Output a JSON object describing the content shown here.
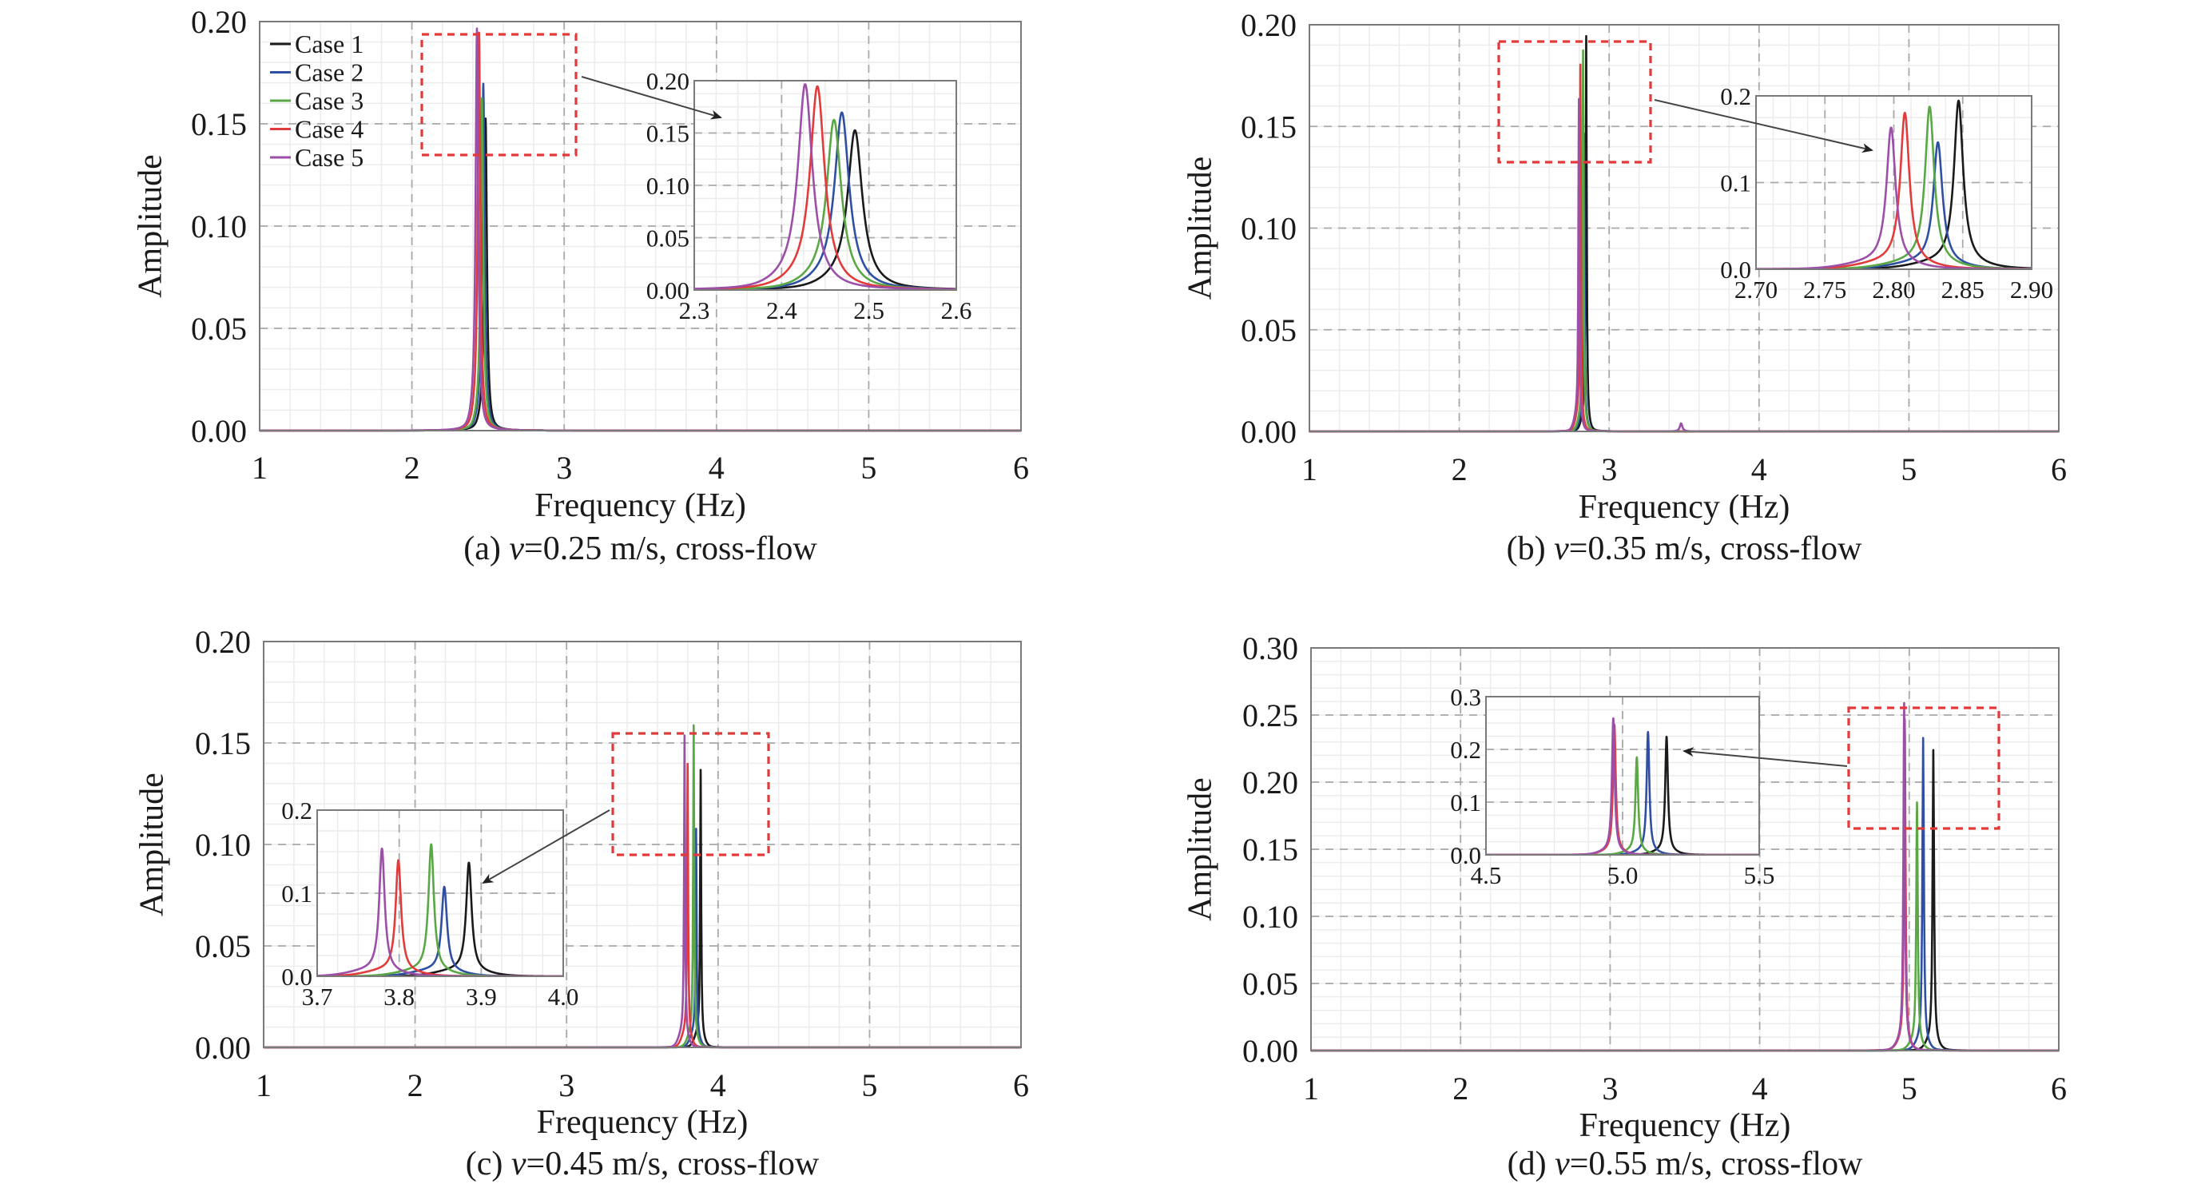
{
  "figure": {
    "legend": [
      {
        "label": "Case 1",
        "color": "#1a1a1a"
      },
      {
        "label": "Case 2",
        "color": "#2f4fa2"
      },
      {
        "label": "Case 3",
        "color": "#5aa845"
      },
      {
        "label": "Case 4",
        "color": "#e23b3b"
      },
      {
        "label": "Case 5",
        "color": "#9c4fa8"
      }
    ],
    "highlight_color": "#e03a3a"
  },
  "chart_data": [
    {
      "type": "line",
      "id": "a",
      "caption_prefix": "(a) ",
      "caption_var": "v",
      "caption_rest": "=0.25 m/s, cross-flow",
      "xlabel": "Frequency (Hz)",
      "ylabel": "Amplitude",
      "xlim": [
        1,
        6
      ],
      "ylim": [
        0,
        0.2
      ],
      "xticks": [
        "1",
        "2",
        "3",
        "4",
        "5",
        "6"
      ],
      "yticks": [
        "0.00",
        "0.05",
        "0.10",
        "0.15",
        "0.20"
      ],
      "grid": true,
      "legend_position": "top-left",
      "series": [
        {
          "name": "Case 1",
          "peak_frequency": 2.484,
          "peak_amplitude": 0.146
        },
        {
          "name": "Case 2",
          "peak_frequency": 2.469,
          "peak_amplitude": 0.163
        },
        {
          "name": "Case 3",
          "peak_frequency": 2.46,
          "peak_amplitude": 0.156
        },
        {
          "name": "Case 4",
          "peak_frequency": 2.441,
          "peak_amplitude": 0.188
        },
        {
          "name": "Case 5",
          "peak_frequency": 2.427,
          "peak_amplitude": 0.19
        }
      ],
      "inset": {
        "xlim": [
          2.3,
          2.6
        ],
        "ylim": [
          0,
          0.2
        ],
        "xticks": [
          "2.3",
          "2.4",
          "2.5",
          "2.6"
        ],
        "yticks": [
          "0.00",
          "0.05",
          "0.10",
          "0.15",
          "0.20"
        ]
      }
    },
    {
      "type": "line",
      "id": "b",
      "caption_prefix": "(b) ",
      "caption_var": "v",
      "caption_rest": "=0.35 m/s, cross-flow",
      "xlabel": "Frequency (Hz)",
      "ylabel": "Amplitude",
      "xlim": [
        1,
        6
      ],
      "ylim": [
        0,
        0.2
      ],
      "xticks": [
        "1",
        "2",
        "3",
        "4",
        "5",
        "6"
      ],
      "yticks": [
        "0.00",
        "0.05",
        "0.10",
        "0.15",
        "0.20"
      ],
      "grid": true,
      "series": [
        {
          "name": "Case 1",
          "peak_frequency": 2.847,
          "peak_amplitude": 0.188
        },
        {
          "name": "Case 2",
          "peak_frequency": 2.832,
          "peak_amplitude": 0.14
        },
        {
          "name": "Case 3",
          "peak_frequency": 2.826,
          "peak_amplitude": 0.181
        },
        {
          "name": "Case 4",
          "peak_frequency": 2.808,
          "peak_amplitude": 0.174
        },
        {
          "name": "Case 5",
          "peak_frequency": 2.798,
          "peak_amplitude": 0.157
        }
      ],
      "secondary_peak": {
        "name": "Case 5",
        "frequency": 3.48,
        "amplitude": 0.004
      },
      "inset": {
        "xlim": [
          2.7,
          2.9
        ],
        "ylim": [
          0,
          0.2
        ],
        "xticks": [
          "2.70",
          "2.75",
          "2.80",
          "2.85",
          "2.90"
        ],
        "yticks": [
          "0.0",
          "0.1",
          "0.2"
        ]
      }
    },
    {
      "type": "line",
      "id": "c",
      "caption_prefix": "(c) ",
      "caption_var": "v",
      "caption_rest": "=0.45 m/s, cross-flow",
      "xlabel": "Frequency (Hz)",
      "ylabel": "Amplitude",
      "xlim": [
        1,
        6
      ],
      "ylim": [
        0,
        0.2
      ],
      "xticks": [
        "1",
        "2",
        "3",
        "4",
        "5",
        "6"
      ],
      "yticks": [
        "0.00",
        "0.05",
        "0.10",
        "0.15",
        "0.20"
      ],
      "grid": true,
      "series": [
        {
          "name": "Case 1",
          "peak_frequency": 3.885,
          "peak_amplitude": 0.13
        },
        {
          "name": "Case 2",
          "peak_frequency": 3.855,
          "peak_amplitude": 0.101
        },
        {
          "name": "Case 3",
          "peak_frequency": 3.839,
          "peak_amplitude": 0.152
        },
        {
          "name": "Case 4",
          "peak_frequency": 3.799,
          "peak_amplitude": 0.133
        },
        {
          "name": "Case 5",
          "peak_frequency": 3.779,
          "peak_amplitude": 0.147
        }
      ],
      "inset": {
        "xlim": [
          3.7,
          4.0
        ],
        "ylim": [
          0,
          0.2
        ],
        "xticks": [
          "3.7",
          "3.8",
          "3.9",
          "4.0"
        ],
        "yticks": [
          "0.0",
          "0.1",
          "0.2"
        ]
      }
    },
    {
      "type": "line",
      "id": "d",
      "caption_prefix": "(d) ",
      "caption_var": "v",
      "caption_rest": "=0.55 m/s, cross-flow",
      "xlabel": "Frequency (Hz)",
      "ylabel": "Amplitude",
      "xlim": [
        1,
        6
      ],
      "ylim": [
        0,
        0.3
      ],
      "xticks": [
        "1",
        "2",
        "3",
        "4",
        "5",
        "6"
      ],
      "yticks": [
        "0.00",
        "0.05",
        "0.10",
        "0.15",
        "0.20",
        "0.25",
        "0.30"
      ],
      "grid": true,
      "series": [
        {
          "name": "Case 1",
          "peak_frequency": 5.161,
          "peak_amplitude": 0.217
        },
        {
          "name": "Case 2",
          "peak_frequency": 5.093,
          "peak_amplitude": 0.226
        },
        {
          "name": "Case 3",
          "peak_frequency": 5.052,
          "peak_amplitude": 0.178
        },
        {
          "name": "Case 4",
          "peak_frequency": 4.97,
          "peak_amplitude": 0.24
        },
        {
          "name": "Case 5",
          "peak_frequency": 4.966,
          "peak_amplitude": 0.252
        }
      ],
      "inset": {
        "xlim": [
          4.5,
          5.5
        ],
        "ylim": [
          0,
          0.3
        ],
        "xticks": [
          "4.5",
          "5.0",
          "5.5"
        ],
        "yticks": [
          "0.0",
          "0.1",
          "0.2",
          "0.3"
        ]
      }
    }
  ]
}
